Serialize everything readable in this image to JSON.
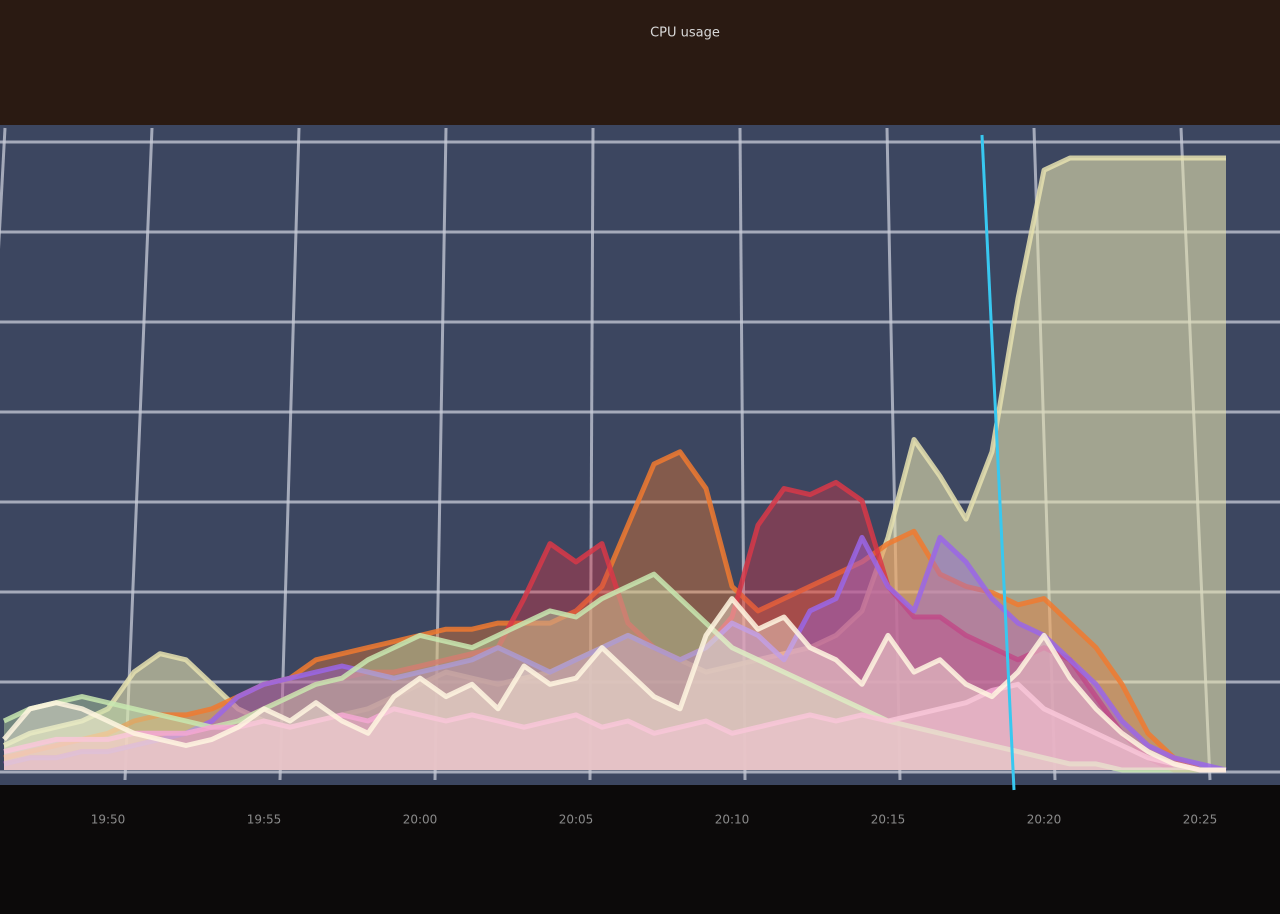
{
  "chart_data": {
    "type": "area",
    "title": "CPU usage",
    "categories": [
      null,
      null,
      null,
      null,
      "19:50",
      null,
      null,
      null,
      null,
      null,
      "19:55",
      null,
      null,
      null,
      null,
      null,
      "20:00",
      null,
      null,
      null,
      null,
      null,
      "20:05",
      null,
      null,
      null,
      null,
      null,
      "20:10",
      null,
      null,
      null,
      null,
      null,
      "20:15",
      null,
      null,
      null,
      null,
      null,
      "20:20",
      null,
      null,
      null,
      null,
      null,
      "20:25",
      null
    ],
    "ylim": [
      0,
      100
    ],
    "grid": true,
    "series": [
      {
        "color": "#e6e2b0",
        "values": [
          4,
          6,
          7,
          8,
          10,
          16,
          19,
          18,
          14,
          10,
          8,
          7,
          8,
          9,
          10,
          12,
          14,
          16,
          15,
          14,
          15,
          16,
          18,
          20,
          22,
          20,
          18,
          16,
          17,
          18,
          19,
          20,
          22,
          26,
          38,
          54,
          48,
          41,
          52,
          77,
          98,
          100,
          100,
          100,
          100,
          100,
          100,
          100
        ]
      },
      {
        "color": "#f07a30",
        "values": [
          2,
          3,
          4,
          5,
          6,
          8,
          9,
          9,
          10,
          12,
          14,
          15,
          18,
          19,
          20,
          21,
          22,
          23,
          23,
          24,
          24,
          24,
          26,
          30,
          40,
          50,
          52,
          46,
          30,
          26,
          28,
          30,
          32,
          34,
          37,
          39,
          32,
          30,
          29,
          27,
          28,
          24,
          20,
          14,
          6,
          2,
          0,
          0
        ]
      },
      {
        "color": "#d83848",
        "values": [
          1,
          2,
          2,
          3,
          3,
          4,
          5,
          6,
          7,
          8,
          10,
          12,
          14,
          15,
          16,
          16,
          17,
          18,
          19,
          20,
          28,
          37,
          34,
          37,
          24,
          20,
          18,
          20,
          25,
          40,
          46,
          45,
          47,
          44,
          30,
          25,
          25,
          22,
          20,
          18,
          20,
          18,
          12,
          6,
          2,
          0,
          0,
          0
        ]
      },
      {
        "color": "#9a66e8",
        "values": [
          1,
          2,
          2,
          3,
          3,
          4,
          5,
          6,
          8,
          12,
          14,
          15,
          16,
          17,
          16,
          15,
          16,
          17,
          18,
          20,
          18,
          16,
          18,
          20,
          22,
          20,
          18,
          20,
          24,
          22,
          18,
          26,
          28,
          38,
          30,
          26,
          38,
          34,
          28,
          24,
          22,
          18,
          14,
          8,
          4,
          2,
          1,
          0
        ]
      },
      {
        "color": "#c8e8b0",
        "values": [
          8,
          10,
          11,
          12,
          11,
          10,
          9,
          8,
          7,
          8,
          10,
          12,
          14,
          15,
          18,
          20,
          22,
          21,
          20,
          22,
          24,
          26,
          25,
          28,
          30,
          32,
          28,
          24,
          20,
          18,
          16,
          14,
          12,
          10,
          8,
          7,
          6,
          5,
          4,
          3,
          2,
          1,
          1,
          0,
          0,
          0,
          0,
          0
        ]
      },
      {
        "color": "#f4a8d4",
        "values": [
          3,
          4,
          5,
          5,
          5,
          6,
          6,
          6,
          7,
          7,
          8,
          7,
          8,
          9,
          8,
          10,
          9,
          8,
          9,
          8,
          7,
          8,
          9,
          7,
          8,
          6,
          7,
          8,
          6,
          7,
          8,
          9,
          8,
          9,
          8,
          9,
          10,
          11,
          13,
          14,
          10,
          8,
          6,
          4,
          2,
          1,
          0,
          0
        ]
      },
      {
        "color": "#fff6e0",
        "values": [
          5,
          10,
          11,
          10,
          8,
          6,
          5,
          4,
          5,
          7,
          10,
          8,
          11,
          8,
          6,
          12,
          15,
          12,
          14,
          10,
          17,
          14,
          15,
          20,
          16,
          12,
          10,
          22,
          28,
          23,
          25,
          20,
          18,
          14,
          22,
          16,
          18,
          14,
          12,
          16,
          22,
          15,
          10,
          6,
          3,
          1,
          0,
          0
        ]
      }
    ]
  }
}
